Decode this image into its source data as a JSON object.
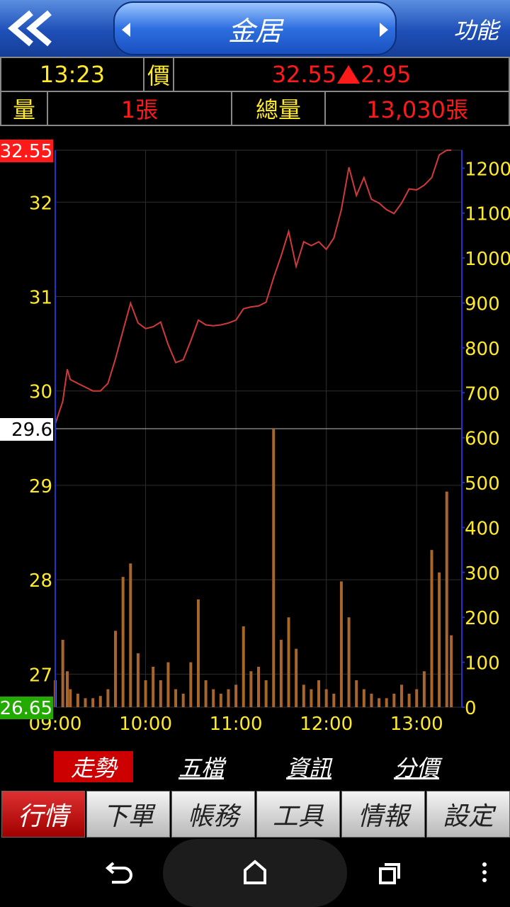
{
  "header": {
    "title": "金居",
    "function": "功能"
  },
  "quote": {
    "time": "13:23",
    "price_label": "價",
    "price": "32.55",
    "change": "2.95",
    "volume_label": "量",
    "last_volume": "1張",
    "total_label": "總量",
    "total_volume": "13,030張"
  },
  "chart_data": {
    "type": "line",
    "x": [
      0,
      5,
      8,
      10,
      15,
      20,
      25,
      30,
      35,
      40,
      45,
      50,
      55,
      60,
      65,
      70,
      75,
      80,
      85,
      90,
      95,
      100,
      105,
      110,
      115,
      120,
      125,
      130,
      135,
      140,
      145,
      150,
      155,
      160,
      165,
      170,
      175,
      180,
      185,
      190,
      195,
      200,
      205,
      210,
      215,
      220,
      225,
      230,
      235,
      240,
      245,
      250,
      255,
      260,
      263
    ],
    "series": [
      {
        "color": "#d03a3a",
        "values": [
          29.65,
          29.89,
          30.23,
          30.12,
          30.08,
          30.04,
          30.0,
          30.0,
          30.08,
          30.34,
          30.64,
          30.93,
          30.72,
          30.66,
          30.68,
          30.73,
          30.49,
          30.3,
          30.33,
          30.53,
          30.75,
          30.7,
          30.69,
          30.7,
          30.72,
          30.75,
          30.87,
          30.89,
          30.9,
          30.94,
          31.2,
          31.43,
          31.69,
          31.32,
          31.58,
          31.54,
          31.58,
          31.5,
          31.62,
          31.92,
          32.37,
          32.07,
          32.26,
          32.03,
          31.99,
          31.92,
          31.88,
          31.99,
          32.14,
          32.13,
          32.18,
          32.26,
          32.5,
          32.55,
          32.55
        ]
      },
      {
        "type": "bar",
        "axis": "y2",
        "color": "#a8652c",
        "values": [
          60,
          150,
          80,
          40,
          30,
          20,
          20,
          25,
          40,
          170,
          290,
          320,
          120,
          60,
          90,
          60,
          100,
          40,
          30,
          100,
          240,
          60,
          40,
          30,
          40,
          50,
          180,
          80,
          90,
          60,
          620,
          150,
          200,
          130,
          50,
          40,
          60,
          40,
          30,
          280,
          200,
          60,
          40,
          30,
          20,
          20,
          30,
          50,
          30,
          40,
          80,
          350,
          300,
          480,
          160
        ]
      }
    ],
    "xlim": [
      0,
      270
    ],
    "xticks": [
      {
        "value": 0,
        "label": "09:00"
      },
      {
        "value": 60,
        "label": "10:00"
      },
      {
        "value": 120,
        "label": "11:00"
      },
      {
        "value": 180,
        "label": "12:00"
      },
      {
        "value": 240,
        "label": "13:00"
      }
    ],
    "ylim": [
      26.65,
      32.55
    ],
    "yticks": [
      27,
      28,
      29,
      30,
      31,
      32
    ],
    "high": 32.55,
    "reference": 29.6,
    "low": 26.65,
    "y2lim": [
      0,
      1240
    ],
    "y2ticks": [
      0,
      100,
      200,
      300,
      400,
      500,
      600,
      700,
      800,
      900,
      1000,
      1100,
      1200
    ],
    "grid": true
  },
  "tabs": [
    "走勢",
    "五檔",
    "資訊",
    "分價"
  ],
  "menu": [
    "行情",
    "下單",
    "帳務",
    "工具",
    "情報",
    "設定"
  ]
}
